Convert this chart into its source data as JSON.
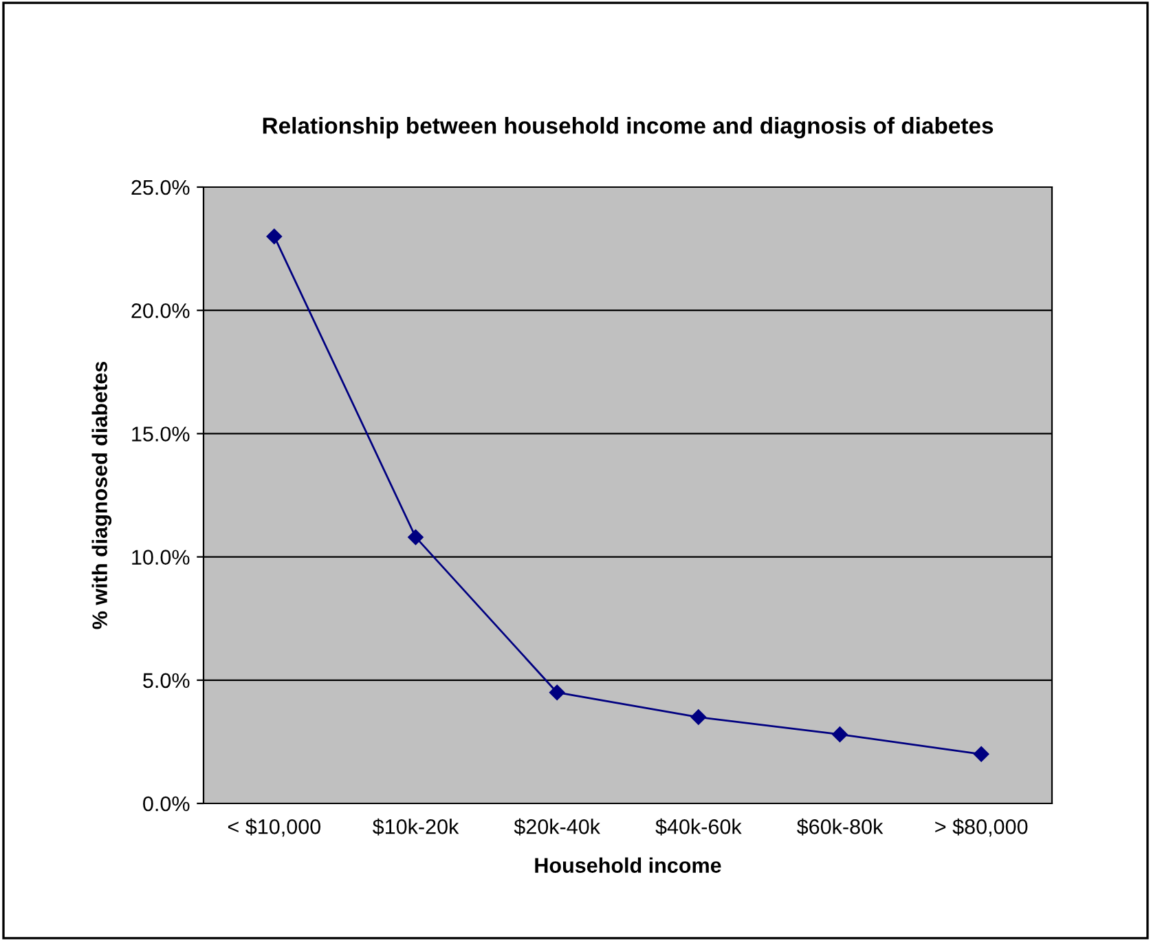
{
  "chart_data": {
    "type": "line",
    "title": "Relationship between household income and diagnosis of diabetes",
    "xlabel": "Household income",
    "ylabel": "% with diagnosed diabetes",
    "categories": [
      "< $10,000",
      "$10k-20k",
      "$20k-40k",
      "$40k-60k",
      "$60k-80k",
      "> $80,000"
    ],
    "series": [
      {
        "color": "#000080",
        "values": [
          23.0,
          10.8,
          4.5,
          3.5,
          2.8,
          2.0
        ]
      }
    ],
    "ylim": [
      0,
      25
    ],
    "yticks": [
      {
        "value": 0,
        "label": "0.0%"
      },
      {
        "value": 5,
        "label": "5.0%"
      },
      {
        "value": 10,
        "label": "10.0%"
      },
      {
        "value": 15,
        "label": "15.0%"
      },
      {
        "value": 20,
        "label": "20.0%"
      },
      {
        "value": 25,
        "label": "25.0%"
      }
    ],
    "grid": "y",
    "marker": "diamond",
    "line_style": "solid"
  }
}
